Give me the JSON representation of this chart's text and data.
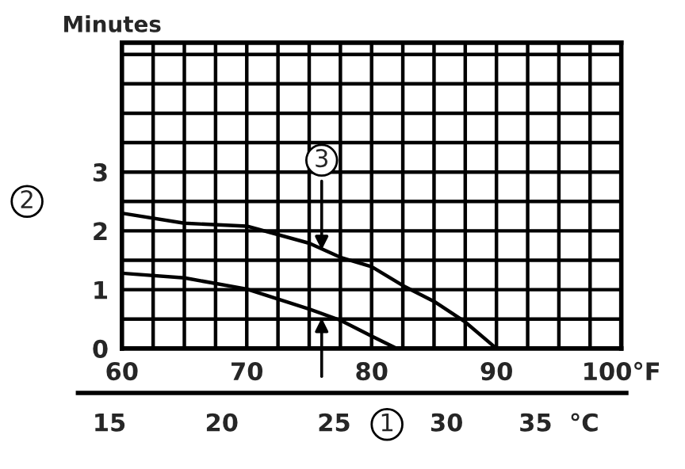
{
  "chart_data": {
    "type": "line",
    "ylabel": "Minutes",
    "x": [
      60,
      65,
      70,
      75,
      77.5,
      80,
      82.5,
      85,
      87.5,
      90
    ],
    "series": [
      {
        "color": "#000000",
        "values": [
          2.3,
          2.13,
          2.08,
          1.79,
          1.55,
          1.39,
          1.07,
          0.8,
          0.45,
          0
        ]
      },
      {
        "color": "#000000",
        "x": [
          60,
          65,
          70,
          75,
          77.5,
          80,
          82
        ],
        "values": [
          1.28,
          1.2,
          1.01,
          0.67,
          0.48,
          0.21,
          0
        ]
      }
    ],
    "xlim": [
      60,
      100
    ],
    "xticks": [
      60,
      {
        "value": 62.5,
        "label": null
      },
      {
        "value": 65,
        "label": null
      },
      {
        "value": 67.5,
        "label": null
      },
      70,
      {
        "value": 72.5,
        "label": null
      },
      {
        "value": 75,
        "label": null
      },
      {
        "value": 77.5,
        "label": null
      },
      80,
      {
        "value": 82.5,
        "label": null
      },
      {
        "value": 85,
        "label": null
      },
      {
        "value": 87.5,
        "label": null
      },
      90,
      {
        "value": 92.5,
        "label": null
      },
      {
        "value": 95,
        "label": null
      },
      {
        "value": 97.5,
        "label": null
      },
      {
        "value": 100,
        "label": "100°F"
      }
    ],
    "ylim": [
      0,
      5.2
    ],
    "yticks": [
      0,
      {
        "value": 0.5,
        "label": null
      },
      1,
      {
        "value": 1.5,
        "label": null
      },
      2,
      {
        "value": 2.5,
        "label": null
      },
      3,
      {
        "value": 3.5,
        "label": null
      },
      {
        "value": 4,
        "label": null
      },
      {
        "value": 4.5,
        "label": null
      },
      {
        "value": 5,
        "label": null
      }
    ],
    "x2lim": [
      13.6,
      38
    ],
    "x2ticks": [
      15,
      20,
      25,
      30,
      {
        "value": 35,
        "label": "35  °C"
      }
    ],
    "grid": true,
    "marker": "none",
    "line_style": "solid",
    "x2label": "1",
    "annotations": [
      "2",
      {
        "text": "3",
        "x": 76,
        "y": 1.6
      }
    ]
  }
}
